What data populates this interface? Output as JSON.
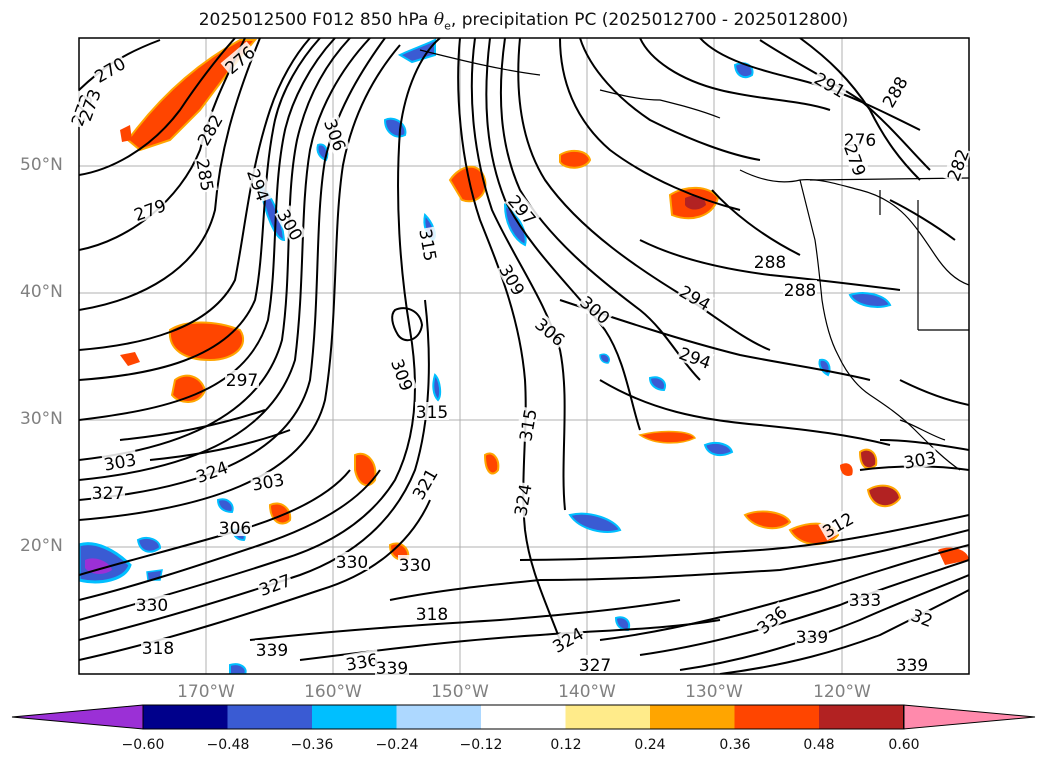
{
  "title": {
    "prefix": "2025012500 F012 850 hPa ",
    "theta": "θ",
    "subscript": "e",
    "suffix": ", precipitation PC (2025012700 - 2025012800)"
  },
  "latitude_labels": [
    "50°N",
    "40°N",
    "30°N",
    "20°N"
  ],
  "longitude_labels": [
    "170°W",
    "160°W",
    "150°W",
    "140°W",
    "130°W",
    "120°W"
  ],
  "colorbar": {
    "tick_labels": [
      "−0.60",
      "−0.48",
      "−0.36",
      "−0.24",
      "−0.12",
      "0.12",
      "0.24",
      "0.36",
      "0.48",
      "0.60"
    ],
    "colors": [
      "#9b30d6",
      "#00008b",
      "#3a5bd3",
      "#00bfff",
      "#add8ff",
      "#ffffff",
      "#ffeb8a",
      "#ffa500",
      "#ff4500",
      "#b22222",
      "#ff8aac"
    ]
  },
  "contour_labels": [
    "270",
    "276",
    "273",
    "282",
    "285",
    "279",
    "294",
    "300",
    "306",
    "315",
    "297",
    "309",
    "291",
    "288",
    "276",
    "282",
    "279",
    "288",
    "294",
    "300",
    "306",
    "294",
    "288",
    "297",
    "309",
    "315",
    "303",
    "324",
    "327",
    "303",
    "306",
    "321",
    "318",
    "324",
    "330",
    "330",
    "327",
    "330",
    "315",
    "324",
    "339",
    "336",
    "339",
    "327",
    "318",
    "303",
    "312",
    "333",
    "336",
    "339",
    "339",
    "32",
    "273"
  ],
  "fill_colors": {
    "orange": "#ff4500",
    "yellow": "#ffeb8a",
    "gold": "#ffa500",
    "red": "#b22222",
    "pink": "#ff8aac",
    "lightblue": "#add8ff",
    "skyblue": "#00bfff",
    "blue": "#3a5bd3",
    "navy": "#00008b",
    "purple": "#9b30d6"
  }
}
